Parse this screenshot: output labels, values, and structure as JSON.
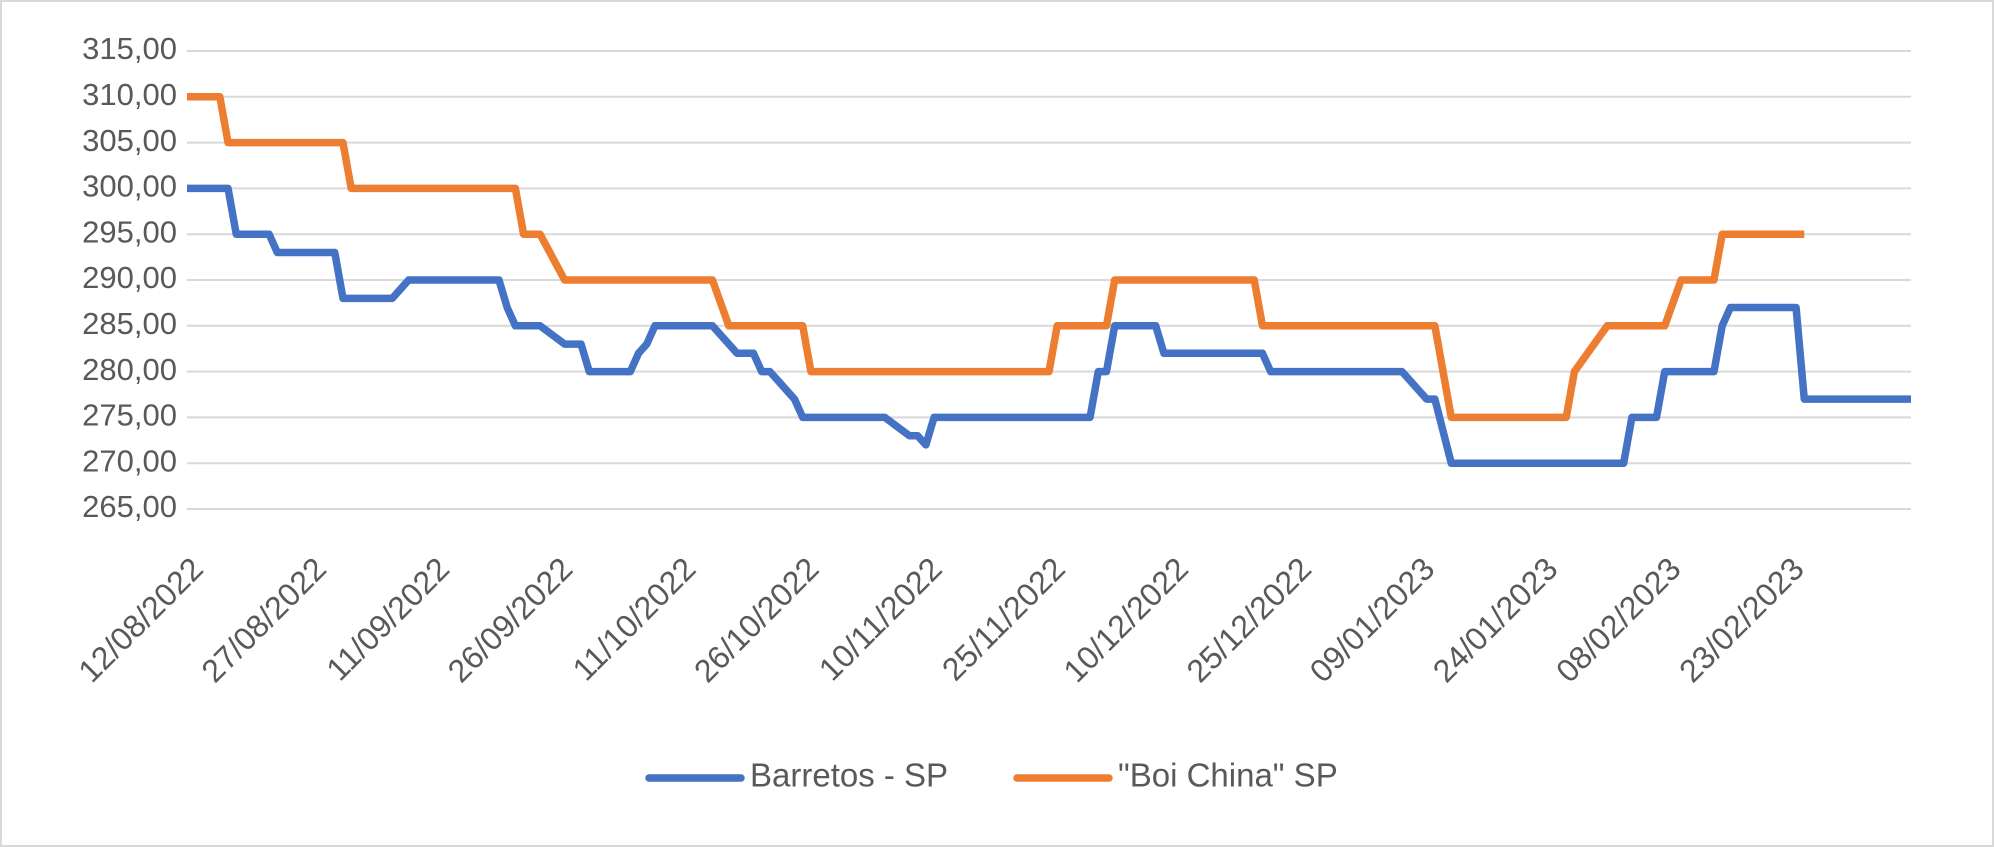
{
  "chart_data": {
    "type": "line",
    "xlim": [
      "12/08/2022",
      "10/03/2023"
    ],
    "xticks": [
      "12/08/2022",
      "27/08/2022",
      "11/09/2022",
      "26/09/2022",
      "11/10/2022",
      "26/10/2022",
      "10/11/2022",
      "25/11/2022",
      "10/12/2022",
      "25/12/2022",
      "09/01/2023",
      "24/01/2023",
      "08/02/2023",
      "23/02/2023"
    ],
    "ylim": [
      265,
      315
    ],
    "yticks": [
      {
        "value": 265,
        "label": "265,00"
      },
      {
        "value": 270,
        "label": "270,00"
      },
      {
        "value": 275,
        "label": "275,00"
      },
      {
        "value": 280,
        "label": "280,00"
      },
      {
        "value": 285,
        "label": "285,00"
      },
      {
        "value": 290,
        "label": "290,00"
      },
      {
        "value": 295,
        "label": "295,00"
      },
      {
        "value": 300,
        "label": "300,00"
      },
      {
        "value": 305,
        "label": "305,00"
      },
      {
        "value": 310,
        "label": "310,00"
      },
      {
        "value": 315,
        "label": "315,00"
      }
    ],
    "grid": true,
    "legend": "bottom",
    "series": [
      {
        "name": "Barretos - SP",
        "color": "#4472c4",
        "x": [
          "12/08/2022",
          "17/08/2022",
          "18/08/2022",
          "22/08/2022",
          "23/08/2022",
          "30/08/2022",
          "31/08/2022",
          "06/09/2022",
          "08/09/2022",
          "19/09/2022",
          "20/09/2022",
          "21/09/2022",
          "24/09/2022",
          "27/09/2022",
          "29/09/2022",
          "30/09/2022",
          "05/10/2022",
          "06/10/2022",
          "07/10/2022",
          "08/10/2022",
          "15/10/2022",
          "18/10/2022",
          "20/10/2022",
          "21/10/2022",
          "22/10/2022",
          "25/10/2022",
          "26/10/2022",
          "05/11/2022",
          "08/11/2022",
          "09/11/2022",
          "10/11/2022",
          "11/11/2022",
          "30/11/2022",
          "01/12/2022",
          "02/12/2022",
          "03/12/2022",
          "08/12/2022",
          "09/12/2022",
          "21/12/2022",
          "22/12/2022",
          "07/01/2023",
          "10/01/2023",
          "11/01/2023",
          "13/01/2023",
          "03/02/2023",
          "04/02/2023",
          "07/02/2023",
          "08/02/2023",
          "14/02/2023",
          "15/02/2023",
          "16/02/2023",
          "24/02/2023",
          "25/02/2023",
          "10/03/2023"
        ],
        "values": [
          300,
          300,
          295,
          295,
          293,
          293,
          288,
          288,
          290,
          290,
          287,
          285,
          285,
          283,
          283,
          280,
          280,
          282,
          283,
          285,
          285,
          282,
          282,
          280,
          280,
          277,
          275,
          275,
          273,
          273,
          272,
          275,
          275,
          280,
          280,
          285,
          285,
          282,
          282,
          280,
          280,
          277,
          277,
          270,
          270,
          275,
          275,
          280,
          280,
          285,
          287,
          287,
          277,
          277
        ]
      },
      {
        "name": "\"Boi China\" SP",
        "color": "#ed7d31",
        "x": [
          "12/08/2022",
          "16/08/2022",
          "17/08/2022",
          "31/08/2022",
          "01/09/2022",
          "21/09/2022",
          "22/09/2022",
          "24/09/2022",
          "27/09/2022",
          "15/10/2022",
          "17/10/2022",
          "26/10/2022",
          "27/10/2022",
          "25/11/2022",
          "26/11/2022",
          "02/12/2022",
          "03/12/2022",
          "20/12/2022",
          "21/12/2022",
          "11/01/2023",
          "13/01/2023",
          "27/01/2023",
          "28/01/2023",
          "01/02/2023",
          "08/02/2023",
          "10/02/2023",
          "14/02/2023",
          "15/02/2023",
          "25/02/2023"
        ],
        "values": [
          310,
          310,
          305,
          305,
          300,
          300,
          295,
          295,
          290,
          290,
          285,
          285,
          280,
          280,
          285,
          285,
          290,
          290,
          285,
          285,
          275,
          275,
          280,
          285,
          285,
          290,
          290,
          295,
          295
        ]
      }
    ]
  }
}
